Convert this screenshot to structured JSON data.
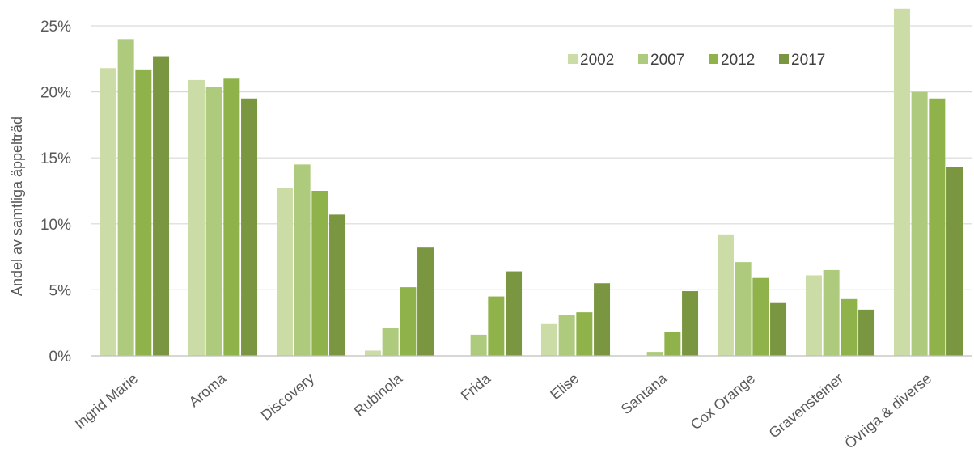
{
  "chart_data": {
    "type": "bar",
    "title": "",
    "xlabel": "",
    "ylabel": "Andel av samtliga äppelträd",
    "ylim": [
      0,
      25
    ],
    "yticks": [
      0,
      5,
      10,
      15,
      20,
      25
    ],
    "ytick_format": "percent",
    "grid": true,
    "legend_position": "top-right",
    "categories": [
      "Ingrid Marie",
      "Aroma",
      "Discovery",
      "Rubinola",
      "Frida",
      "Elise",
      "Santana",
      "Cox Orange",
      "Gravensteiner",
      "Övriga & diverse"
    ],
    "series": [
      {
        "name": "2002",
        "color": "#ccdca6",
        "values": [
          21.8,
          20.9,
          12.7,
          0.4,
          0,
          2.4,
          0,
          9.2,
          6.1,
          26.3
        ]
      },
      {
        "name": "2007",
        "color": "#aecb7d",
        "values": [
          24.0,
          20.4,
          14.5,
          2.1,
          1.6,
          3.1,
          0.3,
          7.1,
          6.5,
          20.0
        ]
      },
      {
        "name": "2012",
        "color": "#8fb24b",
        "values": [
          21.7,
          21.0,
          12.5,
          5.2,
          4.5,
          3.3,
          1.8,
          5.9,
          4.3,
          19.5
        ]
      },
      {
        "name": "2017",
        "color": "#7a9640",
        "values": [
          22.7,
          19.5,
          10.7,
          8.2,
          6.4,
          5.5,
          4.9,
          4.0,
          3.5,
          14.3
        ]
      }
    ]
  }
}
